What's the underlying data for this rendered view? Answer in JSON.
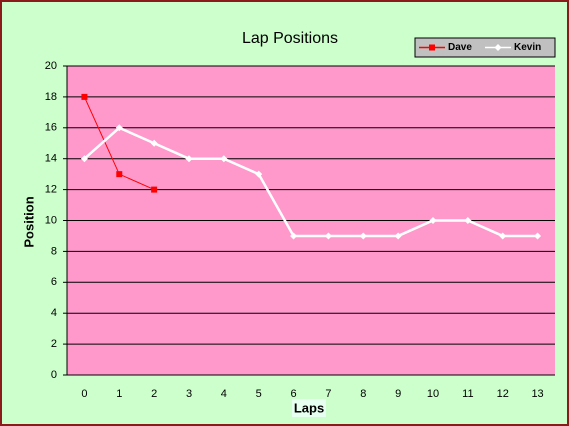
{
  "chart_data": {
    "type": "line",
    "title": "Lap Positions",
    "x_label": "Laps",
    "y_label": "Position",
    "x": [
      0,
      1,
      2,
      3,
      4,
      5,
      6,
      7,
      8,
      9,
      10,
      11,
      12,
      13
    ],
    "xlim": [
      -0.5,
      13.5
    ],
    "series": [
      {
        "name": "Dave",
        "color": "#ff0000",
        "marker": "square",
        "values": [
          18,
          13,
          12,
          null,
          null,
          null,
          null,
          null,
          null,
          null,
          null,
          null,
          null,
          null
        ]
      },
      {
        "name": "Kevin",
        "color": "#ffffff",
        "marker": "diamond",
        "values": [
          14,
          16,
          15,
          14,
          14,
          13,
          9,
          9,
          9,
          9,
          10,
          10,
          9,
          9
        ]
      }
    ],
    "ylim": [
      0,
      20
    ],
    "yticks": [
      0,
      2,
      4,
      6,
      8,
      10,
      12,
      14,
      16,
      18,
      20
    ],
    "grid": true,
    "legend": "top-right"
  }
}
